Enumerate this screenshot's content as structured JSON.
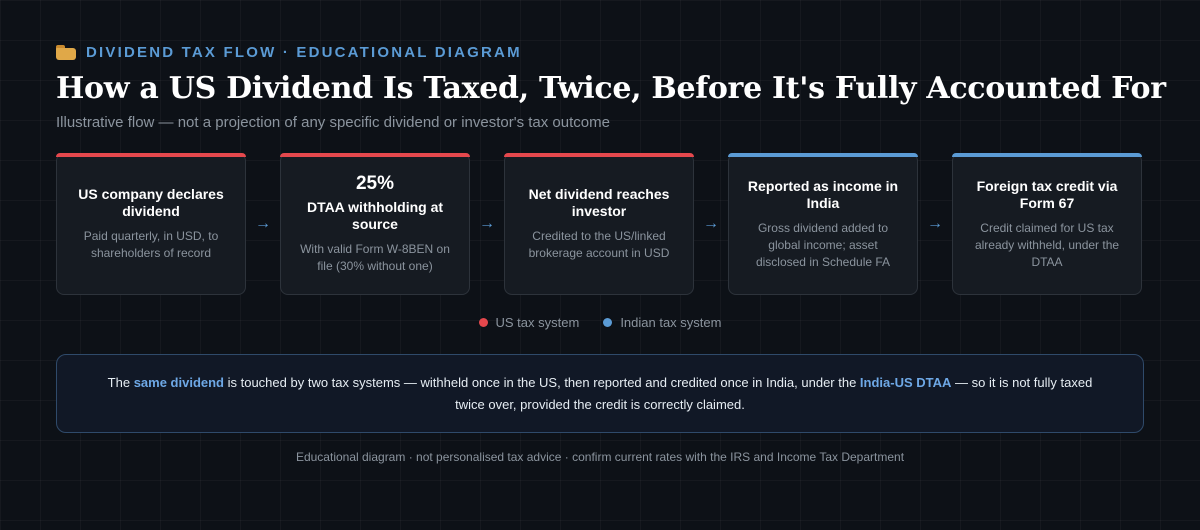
{
  "eyebrow": {
    "icon": "folder-icon",
    "text": "DIVIDEND TAX FLOW · EDUCATIONAL DIAGRAM"
  },
  "title": "How a US Dividend Is Taxed, Twice, Before It's Fully Accounted For",
  "subtitle": "Illustrative flow — not a projection of any specific dividend or investor's tax outcome",
  "colors": {
    "us": "#e5484d",
    "india": "#5b9bd5"
  },
  "steps": [
    {
      "system": "us",
      "big": "",
      "head": "US company declares dividend",
      "desc": "Paid quarterly, in USD, to shareholders of record"
    },
    {
      "system": "us",
      "big": "25%",
      "head": "DTAA withholding at source",
      "desc": "With valid Form W-8BEN on file (30% without one)"
    },
    {
      "system": "us",
      "big": "",
      "head": "Net dividend reaches investor",
      "desc": "Credited to the US/linked brokerage account in USD"
    },
    {
      "system": "in",
      "big": "",
      "head": "Reported as income in India",
      "desc": "Gross dividend added to global income; asset disclosed in Schedule FA"
    },
    {
      "system": "in",
      "big": "",
      "head": "Foreign tax credit via Form 67",
      "desc": "Credit claimed for US tax already withheld, under the DTAA"
    }
  ],
  "arrow_glyph": "→",
  "legend": [
    {
      "label": "US tax system",
      "color": "#e5484d"
    },
    {
      "label": "Indian tax system",
      "color": "#5b9bd5"
    }
  ],
  "callout": {
    "t1": "The ",
    "h1": "same dividend",
    "t2": " is touched by two tax systems — withheld once in the US, then reported and credited once in India, under the ",
    "h2": "India-US DTAA",
    "t3": " — so it is not fully taxed twice over, provided the credit is correctly claimed."
  },
  "footer": "Educational diagram · not personalised tax advice · confirm current rates with the IRS and Income Tax Department"
}
